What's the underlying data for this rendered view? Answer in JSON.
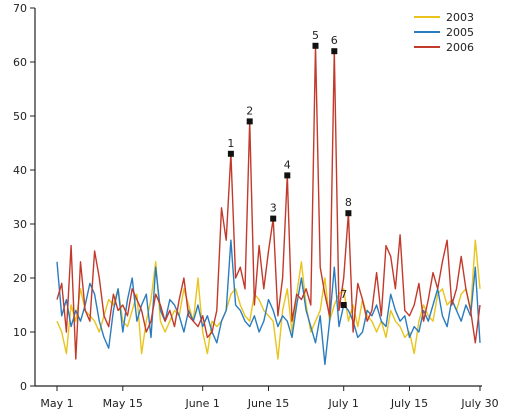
{
  "chart_data": {
    "type": "line",
    "xlabel": "",
    "ylabel": "",
    "ylim": [
      0,
      70
    ],
    "xlim": [
      0,
      90
    ],
    "y_ticks": [
      0,
      10,
      20,
      30,
      40,
      50,
      60,
      70
    ],
    "x_ticks": [
      {
        "x": 0,
        "label": "May 1"
      },
      {
        "x": 14,
        "label": "May 15"
      },
      {
        "x": 31,
        "label": "June 1"
      },
      {
        "x": 45,
        "label": "June 15"
      },
      {
        "x": 61,
        "label": "July 1"
      },
      {
        "x": 75,
        "label": "July 15"
      },
      {
        "x": 90,
        "label": "July 30"
      }
    ],
    "grid": false,
    "legend_position": "top-right",
    "series": [
      {
        "name": "2003",
        "color": "#e8c41c",
        "x": [
          0,
          1,
          2,
          3,
          4,
          5,
          6,
          7,
          8,
          9,
          10,
          11,
          12,
          13,
          14,
          15,
          16,
          17,
          18,
          19,
          20,
          21,
          22,
          23,
          24,
          25,
          26,
          27,
          28,
          29,
          30,
          31,
          32,
          33,
          34,
          35,
          36,
          37,
          38,
          39,
          40,
          41,
          42,
          43,
          44,
          45,
          46,
          47,
          48,
          49,
          50,
          51,
          52,
          53,
          54,
          55,
          56,
          57,
          58,
          59,
          60,
          61,
          62,
          63,
          64,
          65,
          66,
          67,
          68,
          69,
          70,
          71,
          72,
          73,
          74,
          75,
          76,
          77,
          78,
          79,
          80,
          81,
          82,
          83,
          84,
          85,
          86,
          87,
          88,
          89,
          90
        ],
        "values": [
          12,
          10,
          6,
          15,
          12,
          18,
          14,
          13,
          12,
          10,
          13,
          16,
          15,
          18,
          12,
          11,
          14,
          17,
          6,
          12,
          16,
          23,
          12,
          10,
          12,
          14,
          13,
          18,
          15,
          12,
          20,
          10,
          6,
          12,
          11,
          12,
          14,
          17,
          18,
          15,
          13,
          12,
          17,
          16,
          14,
          13,
          12,
          5,
          14,
          18,
          10,
          17,
          23,
          15,
          10,
          12,
          14,
          20,
          12,
          15,
          17,
          18,
          12,
          15,
          11,
          16,
          13,
          12,
          10,
          12,
          9,
          14,
          12,
          11,
          9,
          10,
          6,
          12,
          15,
          13,
          12,
          17,
          18,
          15,
          16,
          14,
          17,
          18,
          14,
          27,
          18
        ]
      },
      {
        "name": "2005",
        "color": "#2b7cbf",
        "x": [
          0,
          1,
          2,
          3,
          4,
          5,
          6,
          7,
          8,
          9,
          10,
          11,
          12,
          13,
          14,
          15,
          16,
          17,
          18,
          19,
          20,
          21,
          22,
          23,
          24,
          25,
          26,
          27,
          28,
          29,
          30,
          31,
          32,
          33,
          34,
          35,
          36,
          37,
          38,
          39,
          40,
          41,
          42,
          43,
          44,
          45,
          46,
          47,
          48,
          49,
          50,
          51,
          52,
          53,
          54,
          55,
          56,
          57,
          58,
          59,
          60,
          61,
          62,
          63,
          64,
          65,
          66,
          67,
          68,
          69,
          70,
          71,
          72,
          73,
          74,
          75,
          76,
          77,
          78,
          79,
          80,
          81,
          82,
          83,
          84,
          85,
          86,
          87,
          88,
          89,
          90
        ],
        "values": [
          23,
          13,
          16,
          11,
          14,
          12,
          15,
          19,
          17,
          12,
          9,
          7,
          14,
          18,
          10,
          16,
          20,
          12,
          15,
          17,
          9,
          22,
          14,
          12,
          16,
          15,
          13,
          10,
          14,
          12,
          15,
          11,
          13,
          10,
          8,
          12,
          14,
          27,
          15,
          14,
          12,
          11,
          13,
          10,
          12,
          16,
          14,
          11,
          13,
          12,
          9,
          15,
          20,
          14,
          11,
          8,
          13,
          4,
          12,
          22,
          11,
          15,
          14,
          12,
          9,
          10,
          14,
          13,
          15,
          12,
          11,
          17,
          14,
          12,
          13,
          9,
          11,
          10,
          14,
          12,
          15,
          18,
          13,
          11,
          16,
          14,
          12,
          15,
          13,
          22,
          8
        ]
      },
      {
        "name": "2006",
        "color": "#c23a2b",
        "x": [
          0,
          1,
          2,
          3,
          4,
          5,
          6,
          7,
          8,
          9,
          10,
          11,
          12,
          13,
          14,
          15,
          16,
          17,
          18,
          19,
          20,
          21,
          22,
          23,
          24,
          25,
          26,
          27,
          28,
          29,
          30,
          31,
          32,
          33,
          34,
          35,
          36,
          37,
          38,
          39,
          40,
          41,
          42,
          43,
          44,
          45,
          46,
          47,
          48,
          49,
          50,
          51,
          52,
          53,
          54,
          55,
          56,
          57,
          58,
          59,
          60,
          61,
          62,
          63,
          64,
          65,
          66,
          67,
          68,
          69,
          70,
          71,
          72,
          73,
          74,
          75,
          76,
          77,
          78,
          79,
          80,
          81,
          82,
          83,
          84,
          85,
          86,
          87,
          88,
          89,
          90
        ],
        "values": [
          16,
          19,
          10,
          26,
          5,
          23,
          14,
          12,
          25,
          20,
          13,
          11,
          17,
          14,
          15,
          13,
          18,
          16,
          14,
          10,
          12,
          17,
          15,
          12,
          14,
          11,
          16,
          20,
          13,
          12,
          11,
          13,
          9,
          10,
          14,
          33,
          27,
          43,
          20,
          22,
          18,
          49,
          15,
          26,
          18,
          25,
          31,
          13,
          20,
          39,
          12,
          17,
          16,
          18,
          15,
          63,
          22,
          17,
          13,
          62,
          14,
          20,
          32,
          10,
          19,
          16,
          12,
          14,
          21,
          13,
          26,
          24,
          18,
          28,
          14,
          13,
          15,
          19,
          12,
          16,
          21,
          18,
          23,
          27,
          15,
          18,
          24,
          18,
          14,
          8,
          15
        ]
      }
    ],
    "annotations": [
      {
        "label": "1",
        "x": 37,
        "y": 43
      },
      {
        "label": "2",
        "x": 41,
        "y": 49
      },
      {
        "label": "3",
        "x": 46,
        "y": 31
      },
      {
        "label": "4",
        "x": 49,
        "y": 39
      },
      {
        "label": "5",
        "x": 55,
        "y": 63
      },
      {
        "label": "6",
        "x": 59,
        "y": 62
      },
      {
        "label": "7",
        "x": 61,
        "y": 15
      },
      {
        "label": "8",
        "x": 62,
        "y": 32
      }
    ],
    "marker_color": "#111111"
  }
}
